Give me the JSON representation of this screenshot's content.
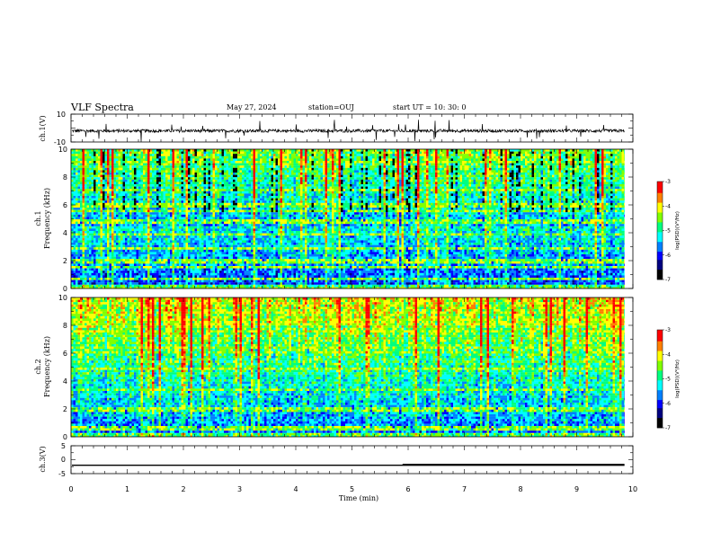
{
  "header": {
    "title": "VLF Spectra",
    "date": "May 27, 2024",
    "station": "station=OUJ",
    "start": "start UT = 10: 30: 0"
  },
  "chart_data": [
    {
      "type": "line",
      "name": "ch1-waveform",
      "ylabel": "ch.1(V)",
      "ylim": [
        -10,
        10
      ],
      "ytick_labels": [
        "10",
        "-10"
      ],
      "baseline": -2
    },
    {
      "type": "heatmap",
      "name": "ch1-spectrogram",
      "ylabel_top": "ch.1",
      "ylabel": "Frequency (kHz)",
      "ylim": [
        0,
        10
      ],
      "ytick_labels": [
        "0",
        "2",
        "4",
        "6",
        "8",
        "10"
      ],
      "colorbar": {
        "label": "log(PSD)(V²/Hz)",
        "range": [
          -7,
          -3
        ],
        "tick_labels": [
          "-3",
          "-4",
          "-5",
          "-6",
          "-7"
        ]
      }
    },
    {
      "type": "heatmap",
      "name": "ch2-spectrogram",
      "ylabel_top": "ch.2",
      "ylabel": "Frequency (kHz)",
      "ylim": [
        0,
        10
      ],
      "ytick_labels": [
        "0",
        "2",
        "4",
        "6",
        "8",
        "10"
      ],
      "colorbar": {
        "label": "log(PSD)(V²/Hz)",
        "range": [
          -7,
          -3
        ],
        "tick_labels": [
          "-3",
          "-4",
          "-5",
          "-6",
          "-7"
        ]
      }
    },
    {
      "type": "line",
      "name": "ch3-signal",
      "ylabel": "ch.3(V)",
      "ylim": [
        -5,
        5
      ],
      "ytick_labels": [
        "5",
        "0",
        "-5"
      ],
      "level": -2,
      "thick_from_min": 5.9
    }
  ],
  "xaxis": {
    "label": "Time (min)",
    "range": [
      0,
      10
    ],
    "data_end": 9.85,
    "tick_labels": [
      "0",
      "1",
      "2",
      "3",
      "4",
      "5",
      "6",
      "7",
      "8",
      "9",
      "10"
    ]
  },
  "colors": {
    "axis": "#000000",
    "waveform": "#000000",
    "colormap": [
      "#000000",
      "#000080",
      "#0000ff",
      "#0080ff",
      "#00ffff",
      "#00ff80",
      "#80ff00",
      "#ffff00",
      "#ff8000",
      "#ff0000",
      "#ffffff"
    ]
  }
}
